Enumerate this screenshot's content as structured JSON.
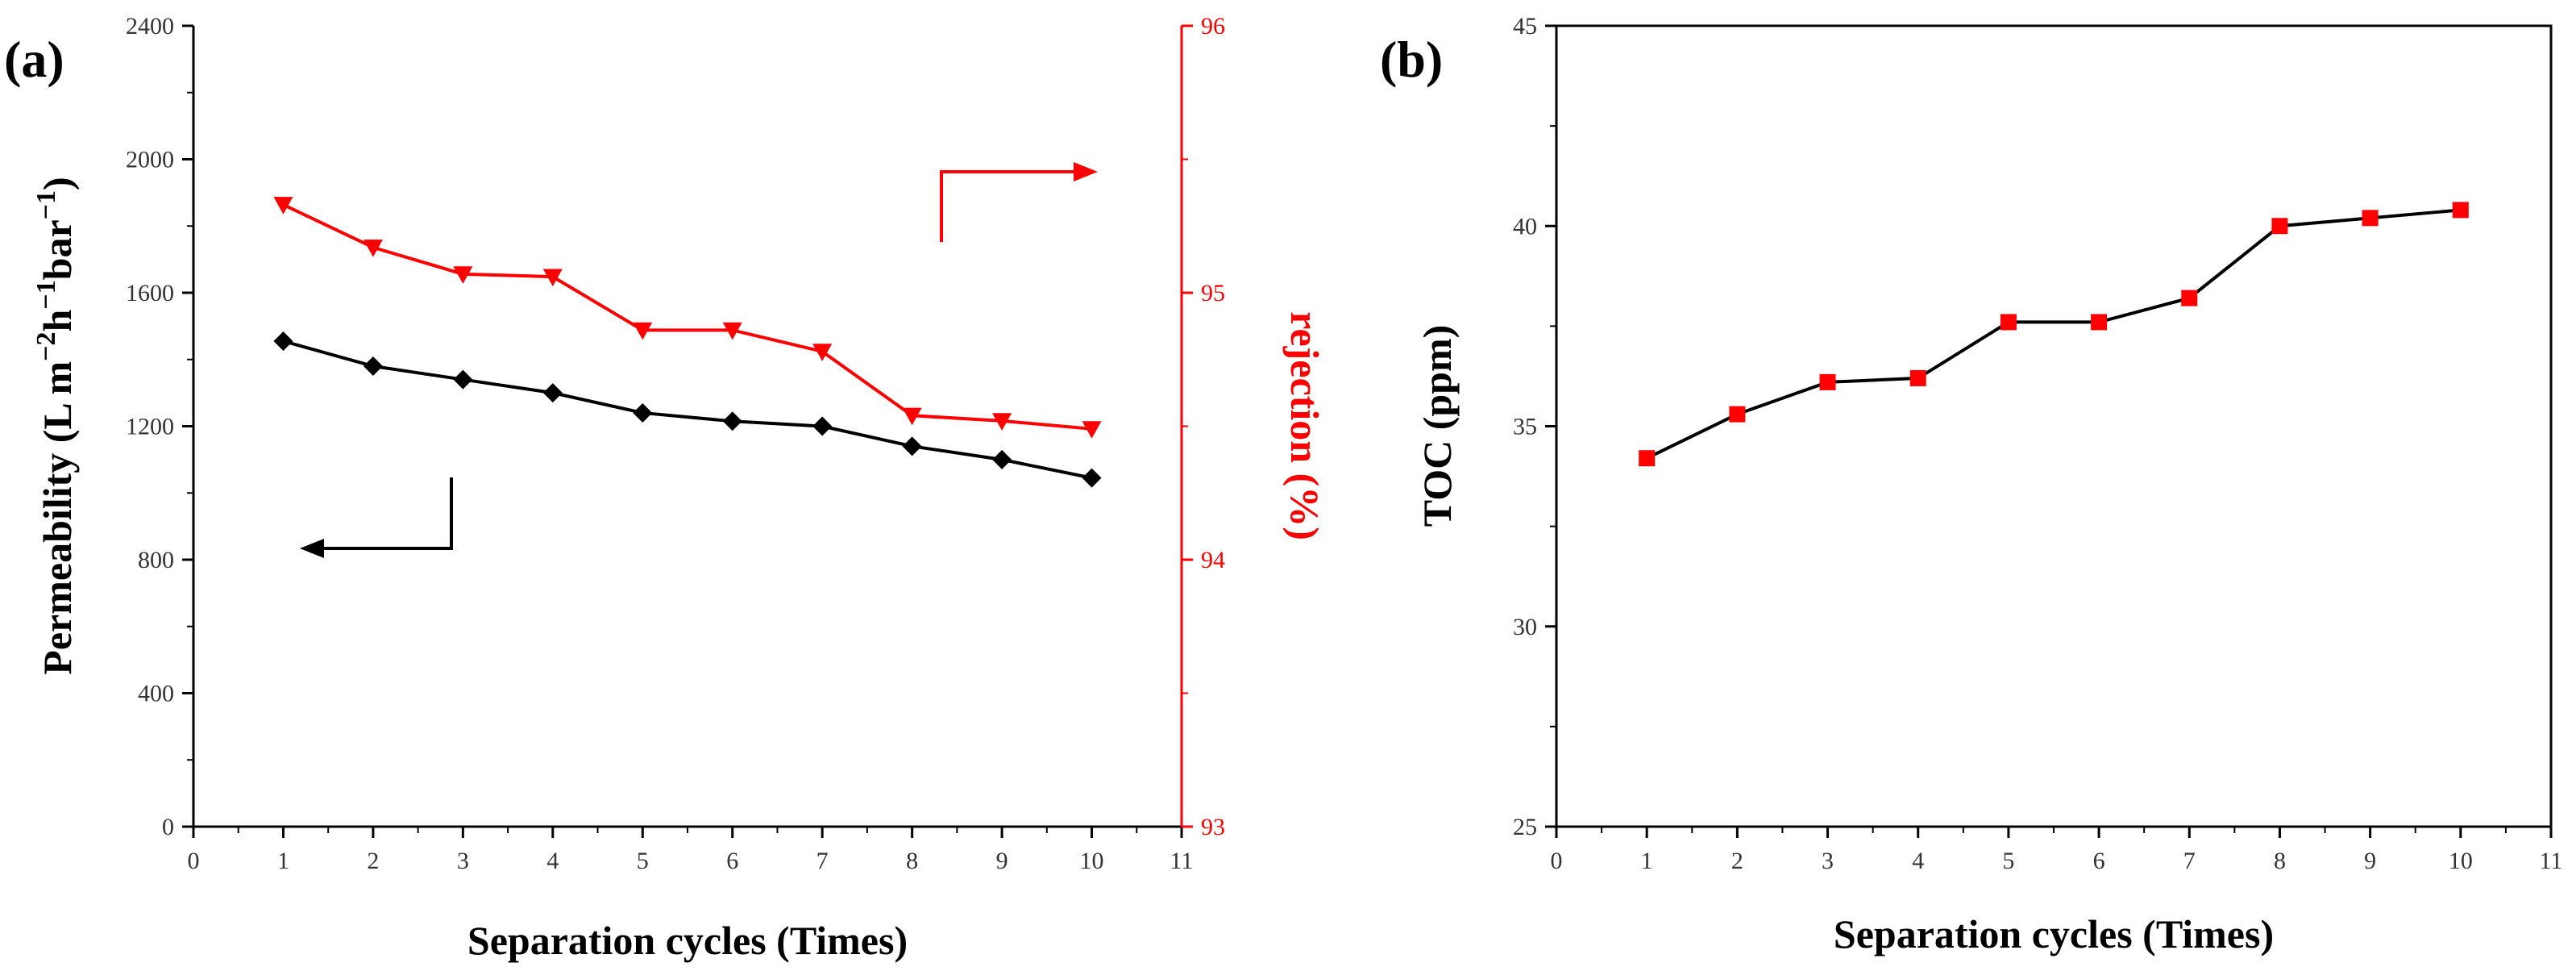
{
  "chart_data": [
    {
      "type": "line",
      "panel_label": "(a)",
      "xlabel": "Separation cycles (Times)",
      "x": [
        1,
        2,
        3,
        4,
        5,
        6,
        7,
        8,
        9,
        10
      ],
      "xlim": [
        0,
        11
      ],
      "xticks": [
        "0",
        "1",
        "2",
        "3",
        "4",
        "5",
        "6",
        "7",
        "8",
        "9",
        "10",
        "11"
      ],
      "left_axis": {
        "label_main": "Permeability (L m",
        "sup1": "−2",
        "mid1": "h",
        "sup2": "−1",
        "mid2": "bar",
        "sup3": "−1",
        "end": ")",
        "ylim": [
          0,
          2400
        ],
        "ticks": [
          "0",
          "400",
          "800",
          "1200",
          "1600",
          "2000",
          "2400"
        ]
      },
      "right_axis": {
        "label": "rejection (%)",
        "ylim": [
          93,
          96
        ],
        "ticks": [
          "93",
          "94",
          "95",
          "96"
        ]
      },
      "series": [
        {
          "name": "Permeability",
          "axis": "left",
          "marker": "diamond",
          "color": "#000000",
          "values": [
            1455,
            1380,
            1340,
            1300,
            1240,
            1215,
            1200,
            1140,
            1100,
            1045
          ]
        },
        {
          "name": "rejection",
          "axis": "right",
          "marker": "triangle-down",
          "color": "#ff0000",
          "values": [
            95.33,
            95.17,
            95.07,
            95.06,
            94.86,
            94.86,
            94.78,
            94.54,
            94.52,
            94.49
          ]
        }
      ],
      "annotations": [
        "left-arrow pointing to left axis (black)",
        "right-arrow pointing to right axis (red)"
      ]
    },
    {
      "type": "line",
      "panel_label": "(b)",
      "xlabel": "Separation cycles (Times)",
      "ylabel": "TOC (ppm)",
      "x": [
        1,
        2,
        3,
        4,
        5,
        6,
        7,
        8,
        9,
        10
      ],
      "xlim": [
        0,
        11
      ],
      "xticks": [
        "0",
        "1",
        "2",
        "3",
        "4",
        "5",
        "6",
        "7",
        "8",
        "9",
        "10",
        "11"
      ],
      "ylim": [
        25,
        45
      ],
      "yticks": [
        "25",
        "30",
        "35",
        "40",
        "45"
      ],
      "series": [
        {
          "name": "TOC",
          "marker": "square",
          "line_color": "#000000",
          "marker_color": "#ff0000",
          "values": [
            34.2,
            35.3,
            36.1,
            36.2,
            37.6,
            37.6,
            38.2,
            40.0,
            40.2,
            40.4
          ]
        }
      ]
    }
  ]
}
